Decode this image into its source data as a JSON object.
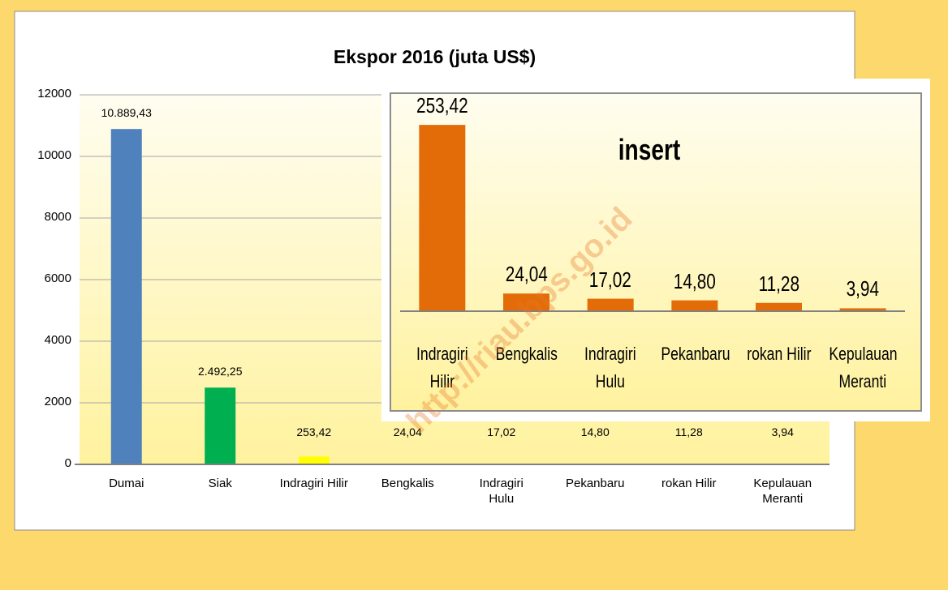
{
  "chart_data": [
    {
      "type": "bar",
      "title": "Ekspor 2016 (juta US$)",
      "categories": [
        "Dumai",
        "Siak",
        "Indragiri Hilir",
        "Bengkalis",
        "Indragiri\nHulu",
        "Pekanbaru",
        "rokan Hilir",
        "Kepulauan\nMeranti"
      ],
      "values": [
        10889.43,
        2492.25,
        253.42,
        24.04,
        17.02,
        14.8,
        11.28,
        3.94
      ],
      "value_labels": [
        "10.889,43",
        "2.492,25",
        "253,42",
        "24,04",
        "17,02",
        "14,80",
        "11,28",
        "3,94"
      ],
      "colors": [
        "#4f81bd",
        "#00b050",
        "#ffff00",
        "#f79646",
        "#8064a2",
        "#c0504d",
        "#4bacc6",
        "#9bbb59"
      ],
      "ylim": [
        0,
        12000
      ],
      "yticks": [
        0,
        2000,
        4000,
        6000,
        8000,
        10000,
        12000
      ],
      "grid": true
    },
    {
      "type": "bar",
      "title": "insert",
      "categories": [
        "Indragiri\nHilir",
        "Bengkalis",
        "Indragiri\nHulu",
        "Pekanbaru",
        "rokan Hilir",
        "Kepulauan\nMeranti"
      ],
      "values": [
        253.42,
        24.04,
        17.02,
        14.8,
        11.28,
        3.94
      ],
      "value_labels": [
        "253,42",
        "24,04",
        "17,02",
        "14,80",
        "11,28",
        "3,94"
      ],
      "color": "#e36c09",
      "ylim": [
        0,
        280
      ]
    }
  ],
  "watermark": "http://riau.bps.go.id"
}
